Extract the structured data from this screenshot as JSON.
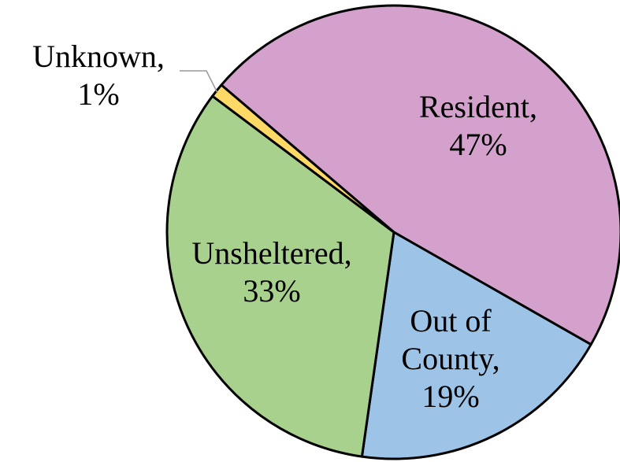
{
  "chart_data": {
    "type": "pie",
    "categories": [
      "Resident,",
      "Out of County,",
      "Unsheltered,",
      "Unknown,"
    ],
    "values": [
      47,
      19,
      33,
      1
    ],
    "value_labels": [
      "47%",
      "19%",
      "33%",
      "1%"
    ],
    "colors": [
      "#d3a1cb",
      "#9dc3e6",
      "#a9d18e",
      "#ffd966"
    ]
  }
}
